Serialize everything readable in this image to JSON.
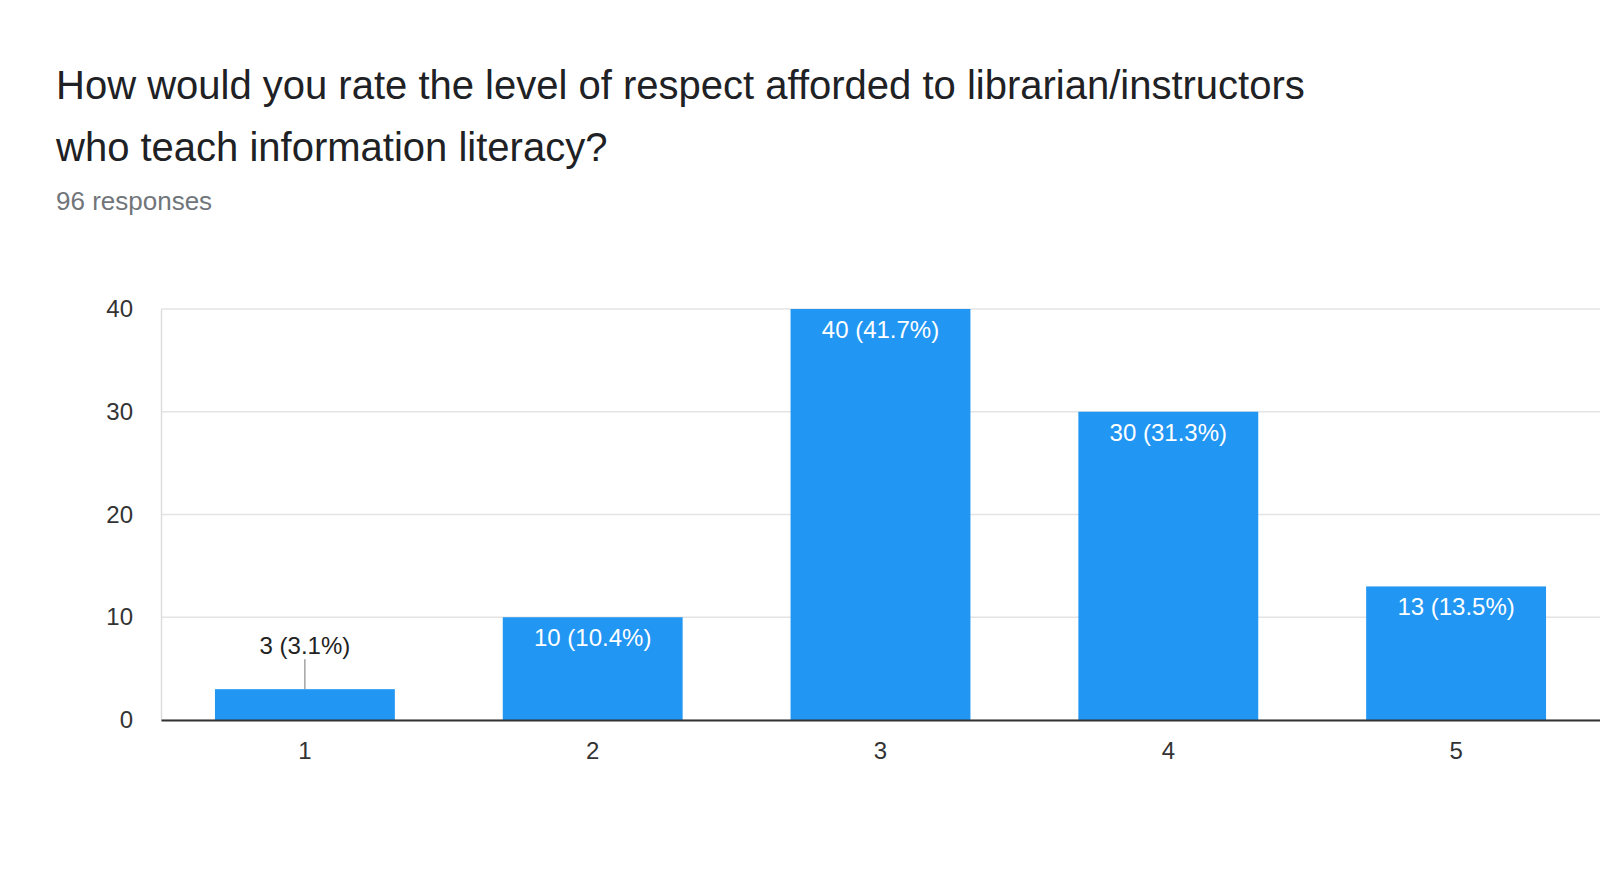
{
  "chart_data": {
    "type": "bar",
    "title": [
      "How would you rate the level of respect afforded to librarian/instructors",
      "who teach information literacy?"
    ],
    "subtitle": "96 responses",
    "categories": [
      "1",
      "2",
      "3",
      "4",
      "5"
    ],
    "values": [
      3,
      10,
      40,
      30,
      13
    ],
    "value_labels": [
      "3 (3.1%)",
      "10 (10.4%)",
      "40 (41.7%)",
      "30 (31.3%)",
      "13 (13.5%)"
    ],
    "data_labels": true,
    "color": "#2196f3",
    "ylim": [
      0,
      40
    ],
    "yticks": [
      0,
      10,
      20,
      30,
      40
    ],
    "grid": true
  }
}
